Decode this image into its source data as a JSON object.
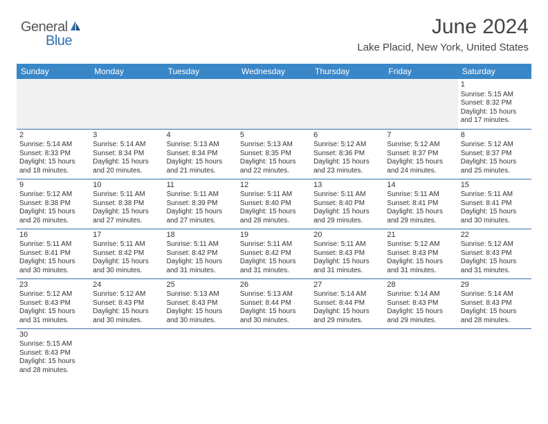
{
  "logo": {
    "general": "General",
    "blue": "Blue"
  },
  "title": "June 2024",
  "subtitle": "Lake Placid, New York, United States",
  "weekdays": [
    "Sunday",
    "Monday",
    "Tuesday",
    "Wednesday",
    "Thursday",
    "Friday",
    "Saturday"
  ],
  "colors": {
    "header_bg": "#3a87c8",
    "header_text": "#ffffff",
    "row_border": "#3a6ea5",
    "empty_bg": "#f1f1f1",
    "text": "#333333",
    "logo_gray": "#555555",
    "logo_blue": "#2f6fb3"
  },
  "weeks": [
    [
      {
        "empty": true
      },
      {
        "empty": true
      },
      {
        "empty": true
      },
      {
        "empty": true
      },
      {
        "empty": true
      },
      {
        "empty": true
      },
      {
        "day": "1",
        "sunrise": "Sunrise: 5:15 AM",
        "sunset": "Sunset: 8:32 PM",
        "daylight1": "Daylight: 15 hours",
        "daylight2": "and 17 minutes."
      }
    ],
    [
      {
        "day": "2",
        "sunrise": "Sunrise: 5:14 AM",
        "sunset": "Sunset: 8:33 PM",
        "daylight1": "Daylight: 15 hours",
        "daylight2": "and 18 minutes."
      },
      {
        "day": "3",
        "sunrise": "Sunrise: 5:14 AM",
        "sunset": "Sunset: 8:34 PM",
        "daylight1": "Daylight: 15 hours",
        "daylight2": "and 20 minutes."
      },
      {
        "day": "4",
        "sunrise": "Sunrise: 5:13 AM",
        "sunset": "Sunset: 8:34 PM",
        "daylight1": "Daylight: 15 hours",
        "daylight2": "and 21 minutes."
      },
      {
        "day": "5",
        "sunrise": "Sunrise: 5:13 AM",
        "sunset": "Sunset: 8:35 PM",
        "daylight1": "Daylight: 15 hours",
        "daylight2": "and 22 minutes."
      },
      {
        "day": "6",
        "sunrise": "Sunrise: 5:12 AM",
        "sunset": "Sunset: 8:36 PM",
        "daylight1": "Daylight: 15 hours",
        "daylight2": "and 23 minutes."
      },
      {
        "day": "7",
        "sunrise": "Sunrise: 5:12 AM",
        "sunset": "Sunset: 8:37 PM",
        "daylight1": "Daylight: 15 hours",
        "daylight2": "and 24 minutes."
      },
      {
        "day": "8",
        "sunrise": "Sunrise: 5:12 AM",
        "sunset": "Sunset: 8:37 PM",
        "daylight1": "Daylight: 15 hours",
        "daylight2": "and 25 minutes."
      }
    ],
    [
      {
        "day": "9",
        "sunrise": "Sunrise: 5:12 AM",
        "sunset": "Sunset: 8:38 PM",
        "daylight1": "Daylight: 15 hours",
        "daylight2": "and 26 minutes."
      },
      {
        "day": "10",
        "sunrise": "Sunrise: 5:11 AM",
        "sunset": "Sunset: 8:38 PM",
        "daylight1": "Daylight: 15 hours",
        "daylight2": "and 27 minutes."
      },
      {
        "day": "11",
        "sunrise": "Sunrise: 5:11 AM",
        "sunset": "Sunset: 8:39 PM",
        "daylight1": "Daylight: 15 hours",
        "daylight2": "and 27 minutes."
      },
      {
        "day": "12",
        "sunrise": "Sunrise: 5:11 AM",
        "sunset": "Sunset: 8:40 PM",
        "daylight1": "Daylight: 15 hours",
        "daylight2": "and 28 minutes."
      },
      {
        "day": "13",
        "sunrise": "Sunrise: 5:11 AM",
        "sunset": "Sunset: 8:40 PM",
        "daylight1": "Daylight: 15 hours",
        "daylight2": "and 29 minutes."
      },
      {
        "day": "14",
        "sunrise": "Sunrise: 5:11 AM",
        "sunset": "Sunset: 8:41 PM",
        "daylight1": "Daylight: 15 hours",
        "daylight2": "and 29 minutes."
      },
      {
        "day": "15",
        "sunrise": "Sunrise: 5:11 AM",
        "sunset": "Sunset: 8:41 PM",
        "daylight1": "Daylight: 15 hours",
        "daylight2": "and 30 minutes."
      }
    ],
    [
      {
        "day": "16",
        "sunrise": "Sunrise: 5:11 AM",
        "sunset": "Sunset: 8:41 PM",
        "daylight1": "Daylight: 15 hours",
        "daylight2": "and 30 minutes."
      },
      {
        "day": "17",
        "sunrise": "Sunrise: 5:11 AM",
        "sunset": "Sunset: 8:42 PM",
        "daylight1": "Daylight: 15 hours",
        "daylight2": "and 30 minutes."
      },
      {
        "day": "18",
        "sunrise": "Sunrise: 5:11 AM",
        "sunset": "Sunset: 8:42 PM",
        "daylight1": "Daylight: 15 hours",
        "daylight2": "and 31 minutes."
      },
      {
        "day": "19",
        "sunrise": "Sunrise: 5:11 AM",
        "sunset": "Sunset: 8:42 PM",
        "daylight1": "Daylight: 15 hours",
        "daylight2": "and 31 minutes."
      },
      {
        "day": "20",
        "sunrise": "Sunrise: 5:11 AM",
        "sunset": "Sunset: 8:43 PM",
        "daylight1": "Daylight: 15 hours",
        "daylight2": "and 31 minutes."
      },
      {
        "day": "21",
        "sunrise": "Sunrise: 5:12 AM",
        "sunset": "Sunset: 8:43 PM",
        "daylight1": "Daylight: 15 hours",
        "daylight2": "and 31 minutes."
      },
      {
        "day": "22",
        "sunrise": "Sunrise: 5:12 AM",
        "sunset": "Sunset: 8:43 PM",
        "daylight1": "Daylight: 15 hours",
        "daylight2": "and 31 minutes."
      }
    ],
    [
      {
        "day": "23",
        "sunrise": "Sunrise: 5:12 AM",
        "sunset": "Sunset: 8:43 PM",
        "daylight1": "Daylight: 15 hours",
        "daylight2": "and 31 minutes."
      },
      {
        "day": "24",
        "sunrise": "Sunrise: 5:12 AM",
        "sunset": "Sunset: 8:43 PM",
        "daylight1": "Daylight: 15 hours",
        "daylight2": "and 30 minutes."
      },
      {
        "day": "25",
        "sunrise": "Sunrise: 5:13 AM",
        "sunset": "Sunset: 8:43 PM",
        "daylight1": "Daylight: 15 hours",
        "daylight2": "and 30 minutes."
      },
      {
        "day": "26",
        "sunrise": "Sunrise: 5:13 AM",
        "sunset": "Sunset: 8:44 PM",
        "daylight1": "Daylight: 15 hours",
        "daylight2": "and 30 minutes."
      },
      {
        "day": "27",
        "sunrise": "Sunrise: 5:14 AM",
        "sunset": "Sunset: 8:44 PM",
        "daylight1": "Daylight: 15 hours",
        "daylight2": "and 29 minutes."
      },
      {
        "day": "28",
        "sunrise": "Sunrise: 5:14 AM",
        "sunset": "Sunset: 8:43 PM",
        "daylight1": "Daylight: 15 hours",
        "daylight2": "and 29 minutes."
      },
      {
        "day": "29",
        "sunrise": "Sunrise: 5:14 AM",
        "sunset": "Sunset: 8:43 PM",
        "daylight1": "Daylight: 15 hours",
        "daylight2": "and 28 minutes."
      }
    ],
    [
      {
        "day": "30",
        "sunrise": "Sunrise: 5:15 AM",
        "sunset": "Sunset: 8:43 PM",
        "daylight1": "Daylight: 15 hours",
        "daylight2": "and 28 minutes."
      },
      {
        "empty": true
      },
      {
        "empty": true
      },
      {
        "empty": true
      },
      {
        "empty": true
      },
      {
        "empty": true
      },
      {
        "empty": true
      }
    ]
  ]
}
